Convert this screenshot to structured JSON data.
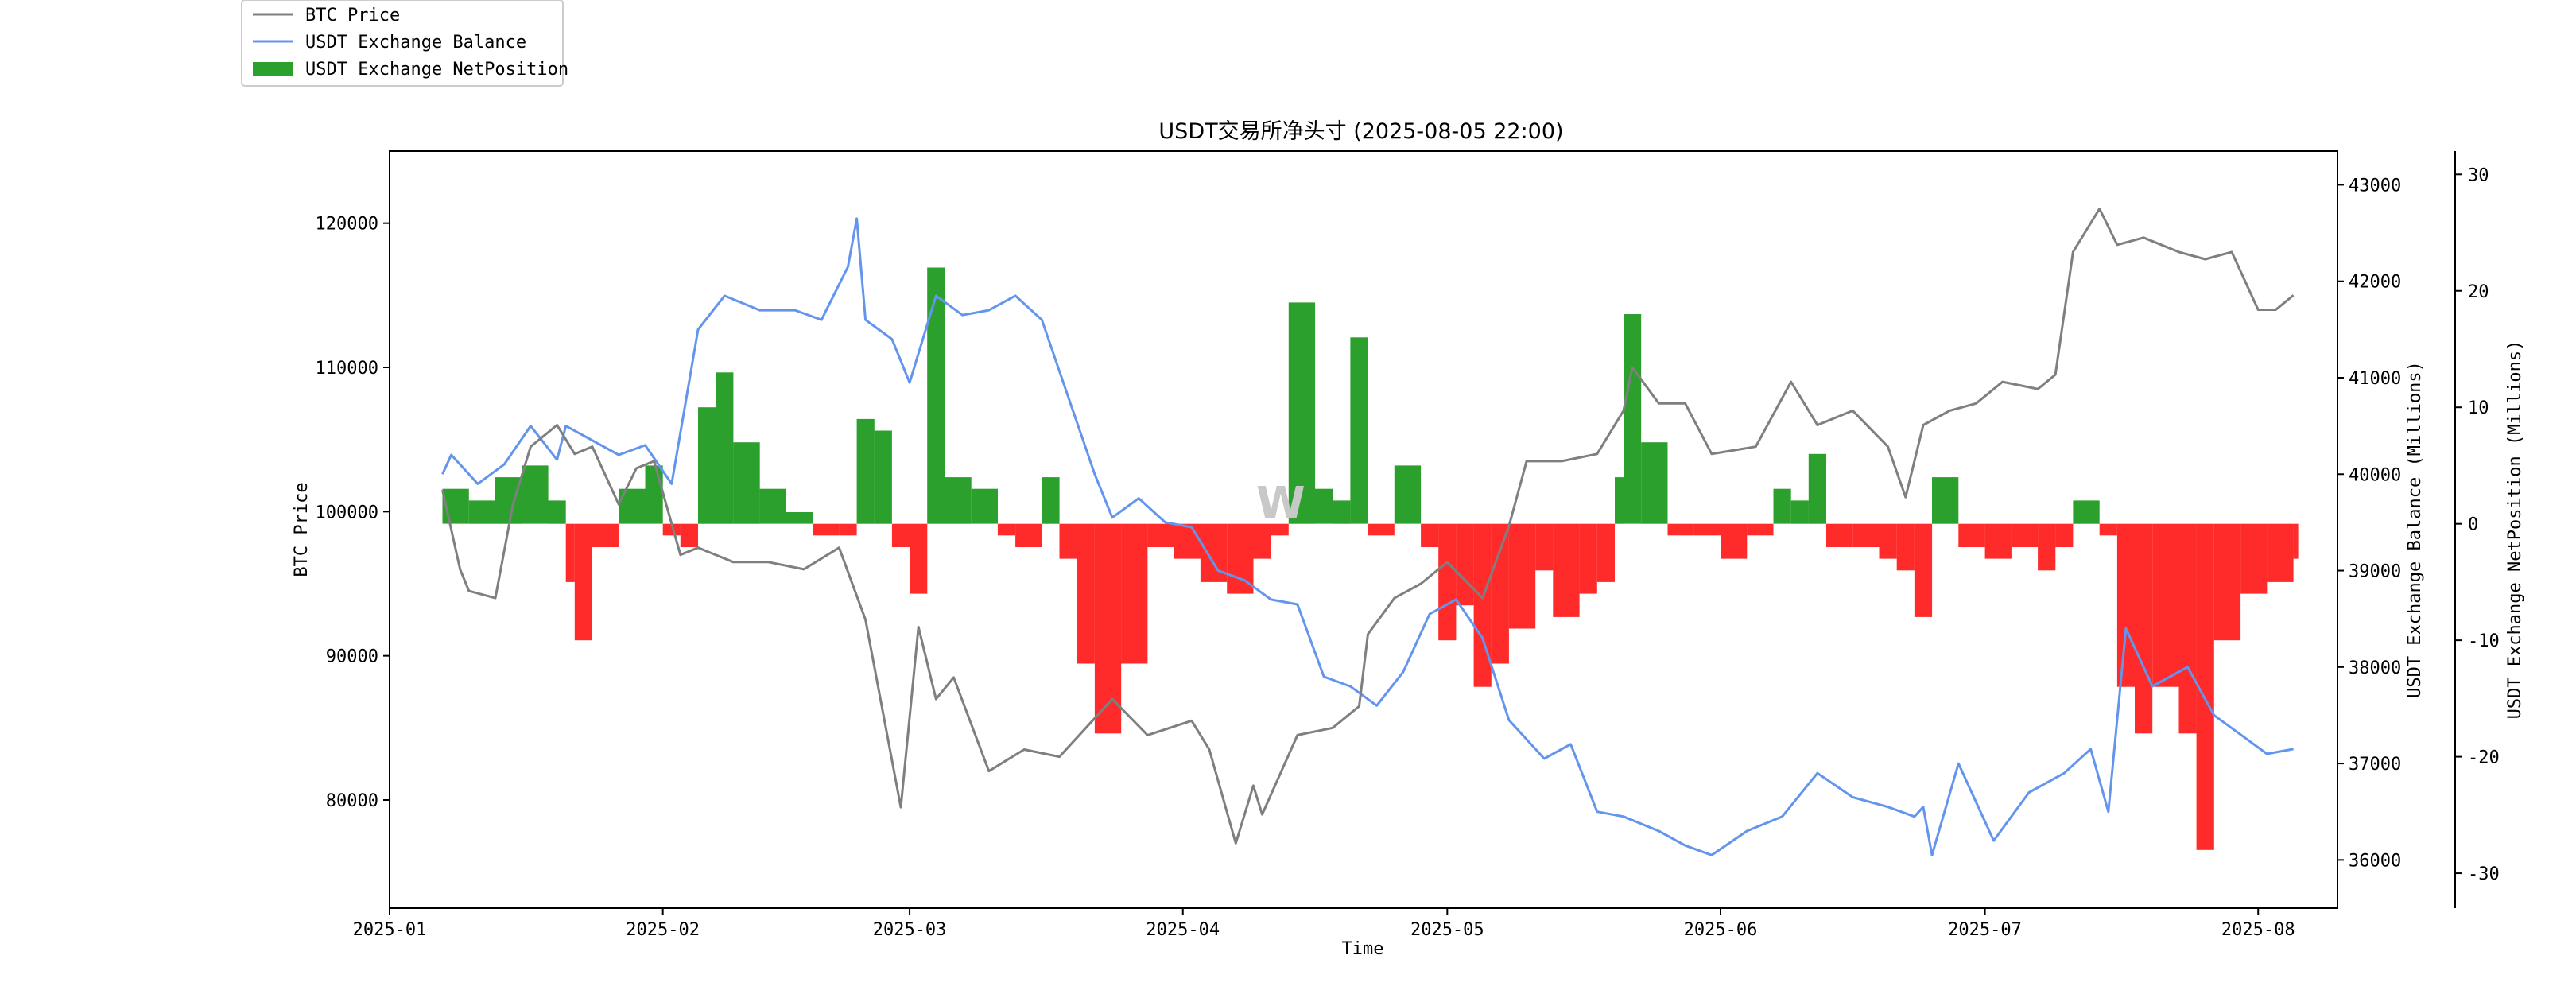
{
  "chart_data": {
    "type": "line",
    "title": "USDT交易所净头寸 (2025-08-05 22:00)",
    "watermark": "W",
    "xlabel": "Time",
    "x_ticks": [
      "2025-01",
      "2025-02",
      "2025-03",
      "2025-04",
      "2025-05",
      "2025-06",
      "2025-07",
      "2025-08"
    ],
    "x_range": [
      "2025-01-01",
      "2025-08-10"
    ],
    "axes": {
      "left": {
        "label": "BTC Price",
        "ylim": [
          72500,
          125000
        ],
        "ticks": [
          "80000",
          "90000",
          "100000",
          "110000",
          "120000"
        ]
      },
      "right": {
        "label": "USDT Exchange Balance (Millions)",
        "ylim": [
          35500,
          43350
        ],
        "ticks": [
          "36000",
          "37000",
          "38000",
          "39000",
          "40000",
          "41000",
          "42000",
          "43000"
        ]
      },
      "right2": {
        "label": "USDT Exchange NetPosition (Millions)",
        "ylim": [
          -33,
          32
        ],
        "ticks": [
          "-30",
          "-20",
          "-10",
          "0",
          "10",
          "20",
          "30"
        ]
      }
    },
    "legend": {
      "placement": "top-left",
      "entries": [
        "BTC Price",
        "USDT Exchange Balance",
        "USDT Exchange NetPosition"
      ]
    },
    "colors": {
      "btc": "#7f7f7f",
      "balance": "#6495ed",
      "pos": "#2ca02c",
      "neg": "#ff2a2a"
    },
    "series": [
      {
        "name": "BTC Price",
        "axis": "left",
        "style": "line",
        "x": [
          "2025-01-07",
          "2025-01-09",
          "2025-01-10",
          "2025-01-13",
          "2025-01-15",
          "2025-01-17",
          "2025-01-20",
          "2025-01-22",
          "2025-01-24",
          "2025-01-27",
          "2025-01-29",
          "2025-01-31",
          "2025-02-03",
          "2025-02-05",
          "2025-02-09",
          "2025-02-13",
          "2025-02-17",
          "2025-02-21",
          "2025-02-24",
          "2025-02-26",
          "2025-02-28",
          "2025-03-02",
          "2025-03-04",
          "2025-03-06",
          "2025-03-10",
          "2025-03-14",
          "2025-03-18",
          "2025-03-21",
          "2025-03-24",
          "2025-03-28",
          "2025-04-02",
          "2025-04-04",
          "2025-04-07",
          "2025-04-09",
          "2025-04-10",
          "2025-04-14",
          "2025-04-18",
          "2025-04-21",
          "2025-04-22",
          "2025-04-25",
          "2025-04-28",
          "2025-05-01",
          "2025-05-05",
          "2025-05-08",
          "2025-05-10",
          "2025-05-14",
          "2025-05-18",
          "2025-05-21",
          "2025-05-22",
          "2025-05-25",
          "2025-05-28",
          "2025-05-31",
          "2025-06-05",
          "2025-06-09",
          "2025-06-12",
          "2025-06-16",
          "2025-06-20",
          "2025-06-22",
          "2025-06-24",
          "2025-06-27",
          "2025-06-30",
          "2025-07-03",
          "2025-07-07",
          "2025-07-09",
          "2025-07-11",
          "2025-07-14",
          "2025-07-16",
          "2025-07-19",
          "2025-07-23",
          "2025-07-26",
          "2025-07-29",
          "2025-08-01",
          "2025-08-03",
          "2025-08-05"
        ],
        "values": [
          101500,
          96000,
          94500,
          94000,
          100500,
          104500,
          106000,
          104000,
          104500,
          100500,
          103000,
          103500,
          97000,
          97500,
          96500,
          96500,
          96000,
          97500,
          92500,
          86000,
          79500,
          92000,
          87000,
          88500,
          82000,
          83500,
          83000,
          85000,
          87000,
          84500,
          85500,
          83500,
          77000,
          81000,
          79000,
          84500,
          85000,
          86500,
          91500,
          94000,
          95000,
          96500,
          94000,
          99000,
          103500,
          103500,
          104000,
          107000,
          110000,
          107500,
          107500,
          104000,
          104500,
          109000,
          106000,
          107000,
          104500,
          101000,
          106000,
          107000,
          107500,
          109000,
          108500,
          109500,
          118000,
          121000,
          118500,
          119000,
          118000,
          117500,
          118000,
          114000,
          114000,
          115000
        ]
      },
      {
        "name": "USDT Exchange Balance",
        "axis": "right",
        "style": "line",
        "x": [
          "2025-01-07",
          "2025-01-08",
          "2025-01-11",
          "2025-01-14",
          "2025-01-17",
          "2025-01-20",
          "2025-01-21",
          "2025-01-24",
          "2025-01-27",
          "2025-01-30",
          "2025-02-02",
          "2025-02-05",
          "2025-02-08",
          "2025-02-12",
          "2025-02-16",
          "2025-02-19",
          "2025-02-22",
          "2025-02-23",
          "2025-02-24",
          "2025-02-27",
          "2025-03-01",
          "2025-03-04",
          "2025-03-07",
          "2025-03-10",
          "2025-03-13",
          "2025-03-16",
          "2025-03-19",
          "2025-03-22",
          "2025-03-24",
          "2025-03-27",
          "2025-03-30",
          "2025-04-02",
          "2025-04-05",
          "2025-04-08",
          "2025-04-11",
          "2025-04-14",
          "2025-04-17",
          "2025-04-20",
          "2025-04-23",
          "2025-04-26",
          "2025-04-29",
          "2025-05-02",
          "2025-05-05",
          "2025-05-08",
          "2025-05-12",
          "2025-05-15",
          "2025-05-18",
          "2025-05-21",
          "2025-05-25",
          "2025-05-28",
          "2025-05-31",
          "2025-06-04",
          "2025-06-08",
          "2025-06-12",
          "2025-06-16",
          "2025-06-20",
          "2025-06-23",
          "2025-06-24",
          "2025-06-25",
          "2025-06-28",
          "2025-07-02",
          "2025-07-06",
          "2025-07-10",
          "2025-07-13",
          "2025-07-15",
          "2025-07-17",
          "2025-07-20",
          "2025-07-24",
          "2025-07-27",
          "2025-07-30",
          "2025-08-02",
          "2025-08-05"
        ],
        "values": [
          40000,
          40200,
          39900,
          40100,
          40500,
          40150,
          40500,
          40350,
          40200,
          40300,
          39900,
          41500,
          41850,
          41700,
          41700,
          41600,
          42150,
          42650,
          41600,
          41400,
          40950,
          41850,
          41650,
          41700,
          41850,
          41600,
          40800,
          40000,
          39550,
          39750,
          39500,
          39450,
          39000,
          38900,
          38700,
          38650,
          37900,
          37800,
          37600,
          37950,
          38550,
          38700,
          38300,
          37450,
          37050,
          37200,
          36500,
          36450,
          36300,
          36150,
          36050,
          36300,
          36450,
          36900,
          36650,
          36550,
          36450,
          36550,
          36050,
          37000,
          36200,
          36700,
          36900,
          37150,
          36500,
          38400,
          37800,
          38000,
          37500,
          37300,
          37100,
          37150
        ]
      },
      {
        "name": "USDT Exchange NetPosition",
        "axis": "right2",
        "style": "bar",
        "x": [
          "2025-01-07",
          "2025-01-10",
          "2025-01-13",
          "2025-01-16",
          "2025-01-19",
          "2025-01-21",
          "2025-01-22",
          "2025-01-24",
          "2025-01-27",
          "2025-01-30",
          "2025-02-01",
          "2025-02-03",
          "2025-02-05",
          "2025-02-07",
          "2025-02-09",
          "2025-02-12",
          "2025-02-15",
          "2025-02-18",
          "2025-02-21",
          "2025-02-23",
          "2025-02-25",
          "2025-02-27",
          "2025-03-01",
          "2025-03-03",
          "2025-03-05",
          "2025-03-08",
          "2025-03-11",
          "2025-03-13",
          "2025-03-16",
          "2025-03-18",
          "2025-03-20",
          "2025-03-22",
          "2025-03-25",
          "2025-03-28",
          "2025-03-31",
          "2025-04-03",
          "2025-04-06",
          "2025-04-09",
          "2025-04-11",
          "2025-04-13",
          "2025-04-16",
          "2025-04-18",
          "2025-04-20",
          "2025-04-22",
          "2025-04-25",
          "2025-04-28",
          "2025-04-30",
          "2025-05-02",
          "2025-05-04",
          "2025-05-06",
          "2025-05-08",
          "2025-05-11",
          "2025-05-13",
          "2025-05-16",
          "2025-05-18",
          "2025-05-20",
          "2025-05-21",
          "2025-05-23",
          "2025-05-26",
          "2025-05-29",
          "2025-06-01",
          "2025-06-04",
          "2025-06-07",
          "2025-06-09",
          "2025-06-11",
          "2025-06-13",
          "2025-06-16",
          "2025-06-19",
          "2025-06-21",
          "2025-06-23",
          "2025-06-25",
          "2025-06-28",
          "2025-07-01",
          "2025-07-04",
          "2025-07-07",
          "2025-07-09",
          "2025-07-11",
          "2025-07-14",
          "2025-07-16",
          "2025-07-18",
          "2025-07-20",
          "2025-07-23",
          "2025-07-25",
          "2025-07-27",
          "2025-07-30",
          "2025-08-02",
          "2025-08-05"
        ],
        "values": [
          3,
          2,
          4,
          5,
          2,
          -5,
          -10,
          -2,
          3,
          5,
          -1,
          -2,
          10,
          13,
          7,
          3,
          1,
          -1,
          -1,
          9,
          8,
          -2,
          -6,
          22,
          4,
          3,
          -1,
          -2,
          4,
          -3,
          -12,
          -18,
          -12,
          -2,
          -3,
          -5,
          -6,
          -3,
          -1,
          19,
          3,
          2,
          16,
          -1,
          5,
          -2,
          -10,
          -7,
          -14,
          -12,
          -9,
          -4,
          -8,
          -6,
          -5,
          4,
          18,
          7,
          -1,
          -1,
          -3,
          -1,
          3,
          2,
          6,
          -2,
          -2,
          -3,
          -4,
          -8,
          4,
          -2,
          -3,
          -2,
          -4,
          -2,
          2,
          -1,
          -14,
          -18,
          -14,
          -18,
          -28,
          -10,
          -6,
          -5,
          -3
        ]
      }
    ]
  }
}
